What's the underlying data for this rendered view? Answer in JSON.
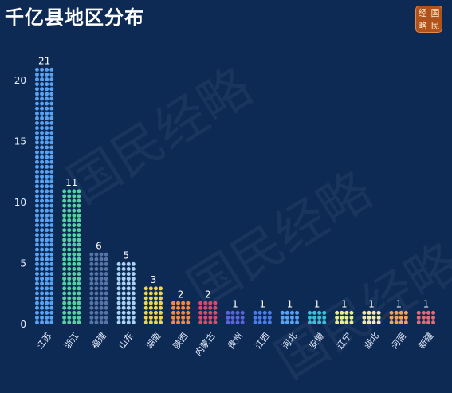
{
  "title": "千亿县地区分布",
  "logo": {
    "chars": [
      "经",
      "国",
      "略",
      "民"
    ]
  },
  "watermark": "国民经略",
  "chart_data": {
    "type": "bar",
    "title": "千亿县地区分布",
    "xlabel": "",
    "ylabel": "",
    "ylim": [
      0,
      21
    ],
    "yticks": [
      0,
      5,
      10,
      15,
      20
    ],
    "grid": false,
    "legend": "none",
    "categories": [
      "江苏",
      "浙江",
      "福建",
      "山东",
      "湖南",
      "陕西",
      "内蒙古",
      "贵州",
      "江西",
      "河北",
      "安徽",
      "辽宁",
      "湖北",
      "河南",
      "新疆"
    ],
    "values": [
      21,
      11,
      6,
      5,
      3,
      2,
      2,
      1,
      1,
      1,
      1,
      1,
      1,
      1,
      1
    ],
    "colors": [
      "#5aa2f2",
      "#56d2a0",
      "#5675a6",
      "#a9d2f5",
      "#f0d64a",
      "#ef8a4b",
      "#d94b6a",
      "#5d63d9",
      "#4a7de8",
      "#5aa2f2",
      "#3cc0d8",
      "#e9f08a",
      "#f3e7b3",
      "#f0a35a",
      "#e56a7a"
    ]
  }
}
